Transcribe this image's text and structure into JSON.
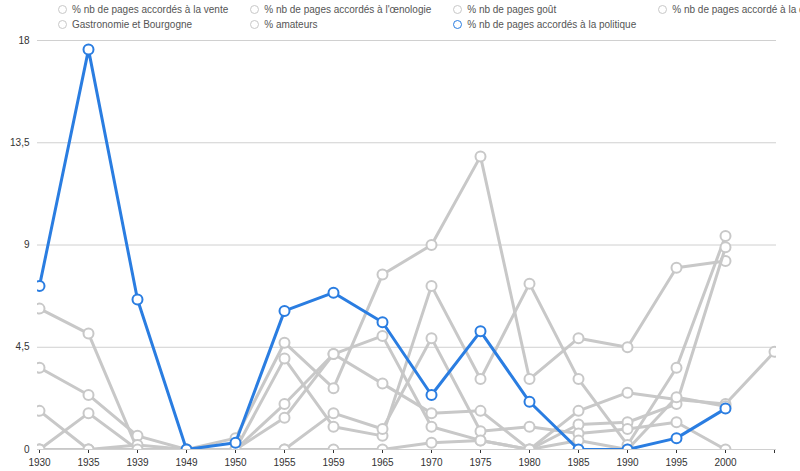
{
  "chart_data": {
    "type": "line",
    "categories": [
      "1930",
      "1935",
      "1939",
      "1949",
      "1950",
      "1955",
      "1959",
      "1965",
      "1970",
      "1975",
      "1980",
      "1985",
      "1990",
      "1995",
      "2000",
      null
    ],
    "ylim": [
      0,
      18
    ],
    "yticks": [
      0,
      {
        "value": 4.5,
        "label": "4,5"
      },
      9,
      {
        "value": 13.5,
        "label": "13,5"
      },
      18
    ],
    "grid": true,
    "legend": "top",
    "marker": "circle",
    "series": [
      {
        "name": "% nb de pages accordés à la vente",
        "color": "#c8c8c8",
        "values": [
          6.2,
          5.1,
          0,
          0,
          0.5,
          4.7,
          2.7,
          7.7,
          9.0,
          12.9,
          3.1,
          4.9,
          4.5,
          8.0,
          8.3,
          null
        ]
      },
      {
        "name": "% nb de pages accordés à l'œnologie",
        "color": "#c8c8c8",
        "values": [
          3.6,
          2.4,
          0.6,
          0,
          0,
          4.0,
          1.0,
          0.6,
          7.2,
          3.1,
          7.3,
          3.1,
          0.2,
          3.6,
          9.4,
          null
        ]
      },
      {
        "name": "% nb de pages goût",
        "color": "#c8c8c8",
        "values": [
          1.7,
          0,
          0,
          0,
          0,
          1.4,
          4.2,
          5.0,
          1.0,
          0.4,
          0,
          1.7,
          2.5,
          2.2,
          2.0,
          4.3
        ]
      },
      {
        "name": "% nb de pages accordé à la dégustation",
        "color": "#c8c8c8",
        "values": [
          0,
          1.6,
          0,
          0,
          0,
          2.0,
          4.2,
          2.9,
          1.6,
          1.7,
          0,
          1.1,
          1.2,
          2.0,
          8.9,
          null
        ]
      },
      {
        "name": "Gastronomie et Bourgogne",
        "color": "#c8c8c8",
        "values": [
          0,
          0,
          0.2,
          0,
          0,
          0,
          1.6,
          0.9,
          4.9,
          0.8,
          1.0,
          0.7,
          0.9,
          1.2,
          0,
          null
        ]
      },
      {
        "name": "% amateurs",
        "color": "#c8c8c8",
        "values": [
          0,
          0,
          0,
          0,
          0,
          0,
          0,
          0,
          0.3,
          0.4,
          0,
          0.4,
          0,
          2.3,
          1.9,
          null
        ]
      },
      {
        "name": "% nb de pages accordés à la politique",
        "color": "#2a7de1",
        "values": [
          7.2,
          17.6,
          6.6,
          0,
          0.3,
          6.1,
          6.9,
          5.6,
          2.4,
          5.2,
          2.1,
          0,
          0,
          0.5,
          1.8,
          null
        ]
      }
    ]
  }
}
